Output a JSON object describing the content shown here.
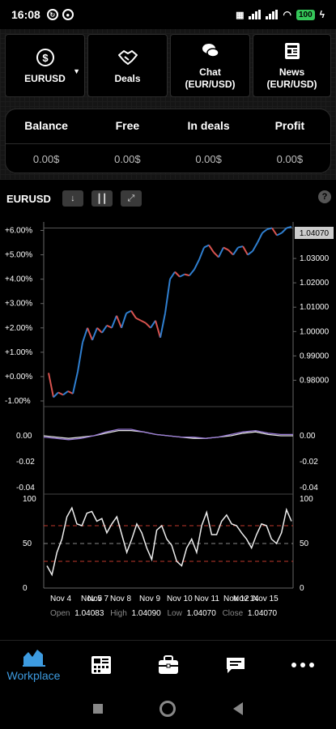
{
  "status_bar": {
    "time": "16:08",
    "battery": "100"
  },
  "nav": {
    "symbol_button": {
      "label": "EURUSD",
      "icon": "dollar-circle-icon"
    },
    "deals_button": {
      "label": "Deals",
      "icon": "handshake-icon"
    },
    "chat_button": {
      "label": "Chat",
      "sublabel": "(EUR/USD)",
      "icon": "chat-bubbles-icon"
    },
    "news_button": {
      "label": "News",
      "sublabel": "(EUR/USD)",
      "icon": "newspaper-icon"
    }
  },
  "balance": {
    "headers": [
      "Balance",
      "Free",
      "In deals",
      "Profit"
    ],
    "values": [
      "0.00$",
      "0.00$",
      "0.00$",
      "0.00$"
    ]
  },
  "chart_toolbar": {
    "symbol": "EURUSD",
    "help": "?"
  },
  "chart_data": [
    {
      "type": "line",
      "panel": "price",
      "y_left_ticks": [
        "+6.00%",
        "+5.00%",
        "+4.00%",
        "+3.00%",
        "+2.00%",
        "+1.00%",
        "+0.00%",
        "-1.00%"
      ],
      "y_right_ticks": [
        "1.03000",
        "1.02000",
        "1.01000",
        "1.00000",
        "0.99000",
        "0.98000"
      ],
      "current_price_label": "1.04070",
      "series": [
        {
          "x": [
            0,
            2,
            4,
            6,
            8,
            10,
            12,
            14,
            16,
            18,
            20,
            22,
            24,
            26,
            28,
            30,
            32,
            34,
            36,
            38,
            40,
            42,
            44,
            46,
            48,
            50,
            52,
            54,
            56,
            58,
            60,
            62,
            64,
            66,
            68,
            70,
            72,
            74,
            76,
            78,
            80,
            82,
            84,
            86,
            88,
            90,
            92,
            94,
            96,
            98,
            100
          ],
          "values": [
            0.15,
            -0.85,
            -0.65,
            -0.75,
            -0.6,
            -0.7,
            0.2,
            1.4,
            2.0,
            1.5,
            2.0,
            1.8,
            2.1,
            2.0,
            2.5,
            2.0,
            2.6,
            2.7,
            2.4,
            2.3,
            2.2,
            2.0,
            2.3,
            1.6,
            2.6,
            4.0,
            4.3,
            4.1,
            4.2,
            4.15,
            4.4,
            4.8,
            5.3,
            5.4,
            5.1,
            4.9,
            5.3,
            5.2,
            5.0,
            5.3,
            5.35,
            5.0,
            5.15,
            5.5,
            5.9,
            6.05,
            6.1,
            5.8,
            5.9,
            6.1,
            6.15
          ]
        }
      ]
    },
    {
      "type": "line",
      "panel": "oscillator",
      "y_ticks": [
        "0.00",
        "-0.02",
        "-0.04"
      ],
      "series": [
        {
          "name": "",
          "color": "#e0e0e0",
          "values": [
            0.0,
            -0.001,
            -0.002,
            -0.001,
            0.0,
            0.002,
            0.004,
            0.004,
            0.003,
            0.001,
            0.0,
            -0.001,
            -0.002,
            -0.002,
            -0.001,
            0.0,
            0.002,
            0.003,
            0.001,
            0.0,
            0.0
          ]
        },
        {
          "name": "",
          "color": "#9a7bd6",
          "values": [
            -0.001,
            -0.002,
            -0.003,
            -0.002,
            0.0,
            0.003,
            0.005,
            0.005,
            0.003,
            0.001,
            0.0,
            -0.001,
            -0.001,
            -0.002,
            -0.001,
            0.001,
            0.003,
            0.004,
            0.002,
            0.001,
            0.001
          ]
        }
      ]
    },
    {
      "type": "line",
      "panel": "rsi",
      "y_ticks": [
        "100",
        "50",
        "0"
      ],
      "levels": [
        70,
        50,
        30
      ],
      "x_labels": [
        "Nov 4",
        "Nov 5",
        "Nov 7",
        "Nov 8",
        "Nov 9",
        "Nov 10",
        "Nov 11",
        "Nov 12",
        "Nov 14",
        "Nov 15"
      ],
      "series": [
        {
          "name": "",
          "values": [
            25,
            15,
            40,
            55,
            80,
            90,
            72,
            70,
            84,
            86,
            75,
            78,
            62,
            72,
            80,
            60,
            40,
            55,
            72,
            62,
            45,
            32,
            65,
            70,
            55,
            48,
            30,
            25,
            45,
            55,
            40,
            70,
            85,
            60,
            60,
            75,
            82,
            72,
            70,
            62,
            55,
            45,
            60,
            72,
            70,
            55,
            50,
            62,
            88,
            75
          ]
        }
      ]
    }
  ],
  "ohlc": {
    "open_label": "Open",
    "open": "1.04083",
    "high_label": "High",
    "high": "1.04090",
    "low_label": "Low",
    "low": "1.04070",
    "close_label": "Close",
    "close": "1.04070"
  },
  "bottom_nav": {
    "workplace_label": "Workplace"
  },
  "colors": {
    "accent": "#3d9be0",
    "up": "#2f7fd0",
    "down": "#d9534f",
    "level": "#c0392b"
  }
}
